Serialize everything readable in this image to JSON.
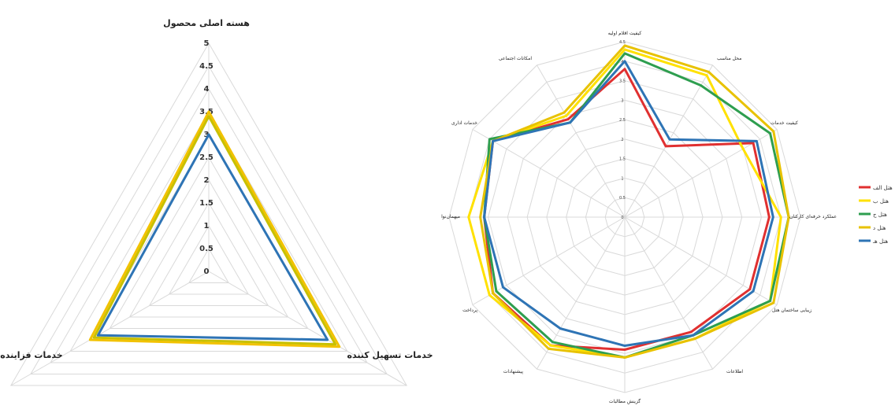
{
  "chart_data": [
    {
      "type": "radar",
      "axes": [
        "هسته اصلی محصول",
        "خدمات تسهیل کننده",
        "خدمات فزاینده"
      ],
      "ticks": [
        "0",
        "0.5",
        "1",
        "1.5",
        "2",
        "2.5",
        "3",
        "3.5",
        "4",
        "4.5",
        "5"
      ],
      "rlim": [
        0,
        5
      ],
      "series": [
        {
          "color": "#f2c200",
          "values": [
            3.5,
            3.3,
            3.0
          ]
        },
        {
          "color": "#c8c000",
          "values": [
            3.4,
            3.2,
            2.9
          ]
        },
        {
          "color": "#2e74b5",
          "values": [
            3.0,
            3.0,
            2.8
          ]
        }
      ]
    },
    {
      "type": "radar",
      "axes": [
        "کیفیت اقلام اولیه",
        "محل مناسب",
        "کیفیت خدمات",
        "عملکرد خرفه‌ای کارکنان",
        "زیبایی ساختمان هتل",
        "اطلاعات",
        "گزینش مطالبات",
        "پیشنهادات",
        "پرداخت",
        "میهمان‌نوازی",
        "خدمات اداری",
        "امکانات اجتماعی"
      ],
      "ticks": [
        "0",
        "0.5",
        "1",
        "1.5",
        "2",
        "2.5",
        "3",
        "3.5",
        "4",
        "4.5"
      ],
      "rlim": [
        0,
        4.5
      ],
      "legend_position": "right",
      "series": [
        {
          "name": "هتل الف",
          "color": "#e03030",
          "values": [
            3.8,
            2.1,
            3.8,
            3.7,
            3.7,
            3.4,
            3.4,
            3.8,
            3.9,
            3.6,
            3.9,
            2.9
          ]
        },
        {
          "name": "هتل ب",
          "color": "#ffe100",
          "values": [
            4.3,
            4.2,
            3.5,
            4.0,
            4.3,
            3.6,
            3.6,
            3.8,
            4.0,
            4.0,
            3.9,
            3.0
          ]
        },
        {
          "name": "هتل ج",
          "color": "#2e9e4f",
          "values": [
            4.2,
            3.9,
            4.3,
            4.2,
            4.3,
            3.5,
            3.6,
            3.7,
            3.8,
            3.6,
            4.0,
            2.8
          ]
        },
        {
          "name": "هتل د",
          "color": "#e8c200",
          "values": [
            4.4,
            4.3,
            4.4,
            4.2,
            4.4,
            3.6,
            3.6,
            3.9,
            3.9,
            3.7,
            3.9,
            3.1
          ]
        },
        {
          "name": "هتل هـ",
          "color": "#2e74b5",
          "values": [
            4.0,
            2.3,
            3.9,
            3.8,
            3.8,
            3.5,
            3.3,
            3.3,
            3.6,
            3.6,
            3.9,
            2.8
          ]
        }
      ]
    }
  ]
}
